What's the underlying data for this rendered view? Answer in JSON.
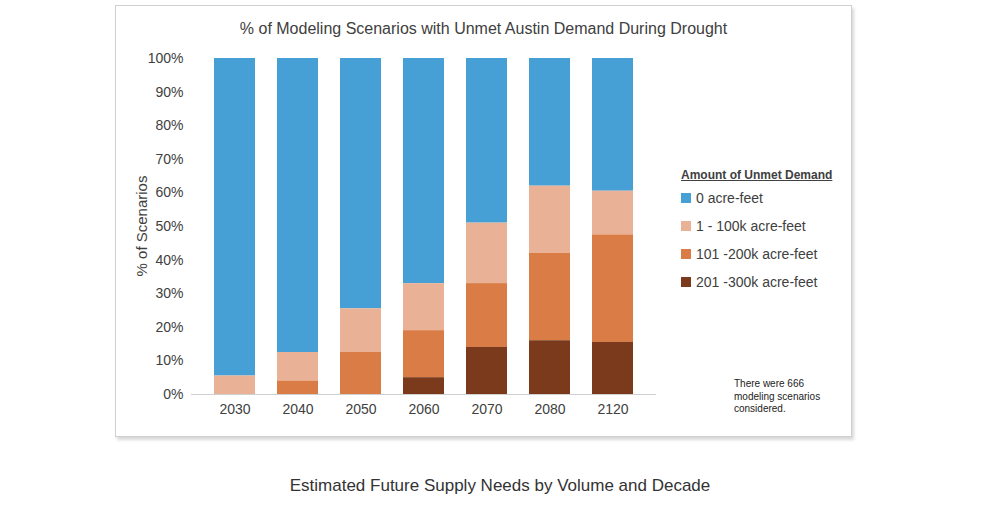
{
  "chart_data": {
    "type": "bar",
    "stacked": true,
    "title": "% of Modeling Scenarios with Unmet Austin Demand During Drought",
    "y_label": "% of Scenarios",
    "caption": "Estimated Future Supply Needs by Volume and Decade",
    "note": "There were 666 modeling scenarios considered.",
    "legend_title": "Amount of Unmet Demand",
    "legend": "right",
    "categories": [
      "2030",
      "2040",
      "2050",
      "2060",
      "2070",
      "2080",
      "2120"
    ],
    "series": [
      {
        "name": "0 acre-feet",
        "color": "#46a0d6",
        "values": [
          94.5,
          87.5,
          74.5,
          67,
          49,
          38,
          39.5
        ]
      },
      {
        "name": "1 - 100k acre-feet",
        "color": "#e9b195",
        "values": [
          5.5,
          8.5,
          13,
          14,
          18,
          20,
          13
        ]
      },
      {
        "name": "101 -200k acre-feet",
        "color": "#d97c45",
        "values": [
          0,
          4,
          12.5,
          14,
          19,
          26,
          32
        ]
      },
      {
        "name": "201 -300k acre-feet",
        "color": "#7a3a1b",
        "values": [
          0,
          0,
          0,
          5,
          14,
          16,
          15.5
        ]
      }
    ],
    "ylim": [
      0,
      100
    ],
    "yticks": [
      {
        "value": 0,
        "label": "0%"
      },
      {
        "value": 10,
        "label": "10%"
      },
      {
        "value": 20,
        "label": "20%"
      },
      {
        "value": 30,
        "label": "30%"
      },
      {
        "value": 40,
        "label": "40%"
      },
      {
        "value": 50,
        "label": "50%"
      },
      {
        "value": 60,
        "label": "60%"
      },
      {
        "value": 70,
        "label": "70%"
      },
      {
        "value": 80,
        "label": "80%"
      },
      {
        "value": 90,
        "label": "90%"
      },
      {
        "value": 100,
        "label": "100%"
      }
    ],
    "grid": false
  }
}
